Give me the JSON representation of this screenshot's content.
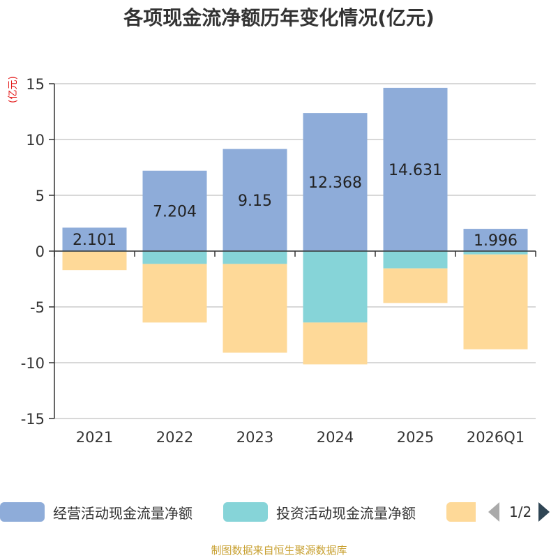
{
  "title": "各项现金流净额历年变化情况(亿元)",
  "unit_label": "(亿元)",
  "source": "制图数据来自恒生聚源数据库",
  "legend": {
    "items": [
      {
        "label": "经营活动现金流量净额",
        "color": "#8eacd9"
      },
      {
        "label": "投资活动现金流量净额",
        "color": "#86d4d8"
      },
      {
        "label": "",
        "color": "#fed998"
      }
    ],
    "page_text": "1/2"
  },
  "chart_data": {
    "type": "bar",
    "stacked": true,
    "title": "各项现金流净额历年变化情况(亿元)",
    "ylabel": "(亿元)",
    "categories": [
      "2021",
      "2022",
      "2023",
      "2024",
      "2025",
      "2026Q1"
    ],
    "ylim": [
      -15,
      15
    ],
    "yticks": [
      15,
      10,
      5,
      0,
      -5,
      -10,
      -15
    ],
    "series": [
      {
        "name": "经营活动现金流量净额",
        "color": "#8eacd9",
        "values": [
          2.101,
          7.204,
          9.15,
          12.368,
          14.631,
          1.996
        ],
        "labels": [
          "2.101",
          "7.204",
          "9.15",
          "12.368",
          "14.631",
          "1.996"
        ]
      },
      {
        "name": "投资活动现金流量净额",
        "color": "#86d4d8",
        "values": [
          -0.05,
          -1.15,
          -1.15,
          -6.4,
          -1.55,
          -0.3
        ]
      },
      {
        "name": "",
        "color": "#fed998",
        "values": [
          -1.65,
          -5.25,
          -7.95,
          -3.75,
          -3.1,
          -8.5
        ]
      }
    ]
  }
}
